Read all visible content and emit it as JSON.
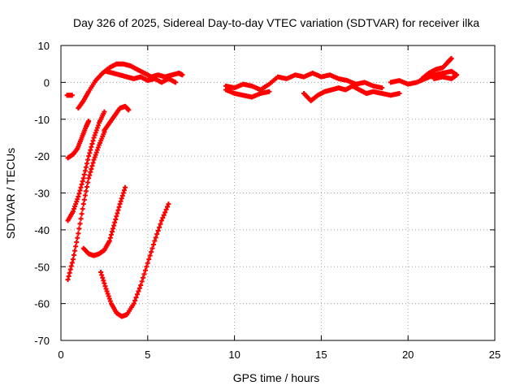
{
  "chart_data": {
    "type": "scatter",
    "title": "Day 326 of 2025, Sidereal Day-to-day VTEC variation (SDTVAR) for receiver ilka",
    "xlabel": "GPS time / hours",
    "ylabel": "SDTVAR / TECUs",
    "xlim": [
      0,
      25
    ],
    "ylim": [
      -70,
      10
    ],
    "xticks": [
      0,
      5,
      10,
      15,
      20,
      25
    ],
    "yticks": [
      -70,
      -60,
      -50,
      -40,
      -30,
      -20,
      -10,
      0,
      10
    ],
    "grid": true,
    "marker_color": "#ff0000",
    "series": [
      {
        "points": [
          [
            0.35,
            -3.5
          ],
          [
            0.65,
            -3.5
          ]
        ]
      },
      {
        "points": [
          [
            1.0,
            -7
          ],
          [
            1.3,
            -5
          ],
          [
            1.6,
            -2.5
          ],
          [
            2.0,
            0.5
          ],
          [
            2.4,
            2.5
          ],
          [
            2.8,
            4
          ],
          [
            3.2,
            5
          ],
          [
            3.6,
            5
          ],
          [
            4.0,
            4.5
          ],
          [
            4.4,
            3.5
          ],
          [
            4.8,
            2.5
          ],
          [
            5.2,
            1.5
          ],
          [
            5.6,
            2
          ],
          [
            6.0,
            1.5
          ],
          [
            6.4,
            2
          ],
          [
            6.8,
            2.5
          ],
          [
            7.0,
            2
          ]
        ]
      },
      {
        "points": [
          [
            2.6,
            3
          ],
          [
            3.0,
            2.5
          ],
          [
            3.4,
            2
          ],
          [
            3.8,
            1.5
          ],
          [
            4.2,
            1
          ],
          [
            4.6,
            1.5
          ],
          [
            5.0,
            0.5
          ],
          [
            5.4,
            1
          ],
          [
            5.8,
            0
          ],
          [
            6.2,
            1
          ],
          [
            6.6,
            0
          ]
        ]
      },
      {
        "points": [
          [
            0.4,
            -20.5
          ],
          [
            0.7,
            -19.5
          ],
          [
            0.95,
            -18
          ],
          [
            1.2,
            -15
          ],
          [
            1.45,
            -12
          ],
          [
            1.6,
            -10.5
          ]
        ]
      },
      {
        "points": [
          [
            0.4,
            -37.5
          ],
          [
            0.7,
            -35
          ],
          [
            1.0,
            -31
          ],
          [
            1.3,
            -26
          ],
          [
            1.6,
            -20
          ],
          [
            1.9,
            -15
          ],
          [
            2.2,
            -11
          ],
          [
            2.5,
            -8
          ]
        ]
      },
      {
        "points": [
          [
            0.4,
            -53.5
          ],
          [
            0.7,
            -48
          ],
          [
            1.0,
            -41
          ],
          [
            1.3,
            -33
          ],
          [
            1.6,
            -26
          ],
          [
            1.9,
            -21
          ],
          [
            2.2,
            -17
          ],
          [
            2.5,
            -13.5
          ]
        ]
      },
      {
        "points": [
          [
            1.3,
            -45
          ],
          [
            1.6,
            -46.5
          ],
          [
            1.9,
            -47
          ],
          [
            2.2,
            -46.5
          ],
          [
            2.5,
            -45.5
          ],
          [
            2.8,
            -43
          ],
          [
            3.1,
            -38
          ],
          [
            3.4,
            -33
          ],
          [
            3.7,
            -28.5
          ]
        ]
      },
      {
        "points": [
          [
            2.3,
            -51.5
          ],
          [
            2.6,
            -56
          ],
          [
            2.9,
            -60
          ],
          [
            3.2,
            -62.5
          ],
          [
            3.5,
            -63.5
          ],
          [
            3.8,
            -63
          ],
          [
            4.2,
            -60
          ],
          [
            4.6,
            -55
          ],
          [
            5.0,
            -49
          ],
          [
            5.4,
            -43
          ],
          [
            5.8,
            -37.5
          ],
          [
            6.2,
            -33
          ]
        ]
      },
      {
        "points": [
          [
            2.5,
            -13
          ],
          [
            2.8,
            -11
          ],
          [
            3.1,
            -9
          ],
          [
            3.4,
            -7
          ],
          [
            3.7,
            -6.5
          ],
          [
            3.9,
            -7.5
          ]
        ]
      },
      {
        "points": [
          [
            9.5,
            -1
          ],
          [
            10.0,
            -1.5
          ],
          [
            10.5,
            -0.5
          ],
          [
            11.0,
            -1
          ],
          [
            11.5,
            -2
          ],
          [
            12.0,
            -0.5
          ],
          [
            12.5,
            1.5
          ],
          [
            13.0,
            1
          ],
          [
            13.5,
            2
          ],
          [
            14.0,
            1.5
          ],
          [
            14.5,
            2.5
          ],
          [
            15.0,
            1.5
          ],
          [
            15.5,
            2
          ],
          [
            16.0,
            1
          ],
          [
            16.5,
            0.5
          ],
          [
            17.0,
            -0.5
          ],
          [
            17.5,
            0
          ],
          [
            18.0,
            -1
          ],
          [
            18.5,
            -1.5
          ]
        ]
      },
      {
        "points": [
          [
            9.5,
            -2
          ],
          [
            10.0,
            -3
          ],
          [
            10.5,
            -3.5
          ],
          [
            11.0,
            -4
          ],
          [
            11.5,
            -3
          ],
          [
            12.0,
            -2.5
          ]
        ]
      },
      {
        "points": [
          [
            14.0,
            -3
          ],
          [
            14.4,
            -5
          ],
          [
            14.8,
            -3.5
          ],
          [
            15.2,
            -2.5
          ],
          [
            15.6,
            -2
          ],
          [
            16.0,
            -1.5
          ],
          [
            16.4,
            -2
          ],
          [
            16.8,
            -1
          ],
          [
            17.2,
            -2
          ],
          [
            17.6,
            -3
          ],
          [
            18.0,
            -2.5
          ],
          [
            18.5,
            -3
          ],
          [
            19.0,
            -3.5
          ],
          [
            19.5,
            -3
          ]
        ]
      },
      {
        "points": [
          [
            19.0,
            0
          ],
          [
            19.5,
            0.5
          ],
          [
            20.0,
            -0.5
          ],
          [
            20.5,
            0
          ],
          [
            21.0,
            1
          ],
          [
            21.5,
            2
          ],
          [
            22.0,
            2.5
          ],
          [
            22.5,
            3
          ],
          [
            22.8,
            2
          ]
        ]
      },
      {
        "points": [
          [
            20.8,
            1
          ],
          [
            21.2,
            2.5
          ],
          [
            21.6,
            3.5
          ],
          [
            22.0,
            4
          ],
          [
            22.3,
            5.5
          ],
          [
            22.5,
            6.5
          ]
        ]
      },
      {
        "points": [
          [
            21.5,
            1
          ],
          [
            22.0,
            1.5
          ],
          [
            22.5,
            1
          ],
          [
            22.8,
            2
          ]
        ]
      }
    ]
  }
}
